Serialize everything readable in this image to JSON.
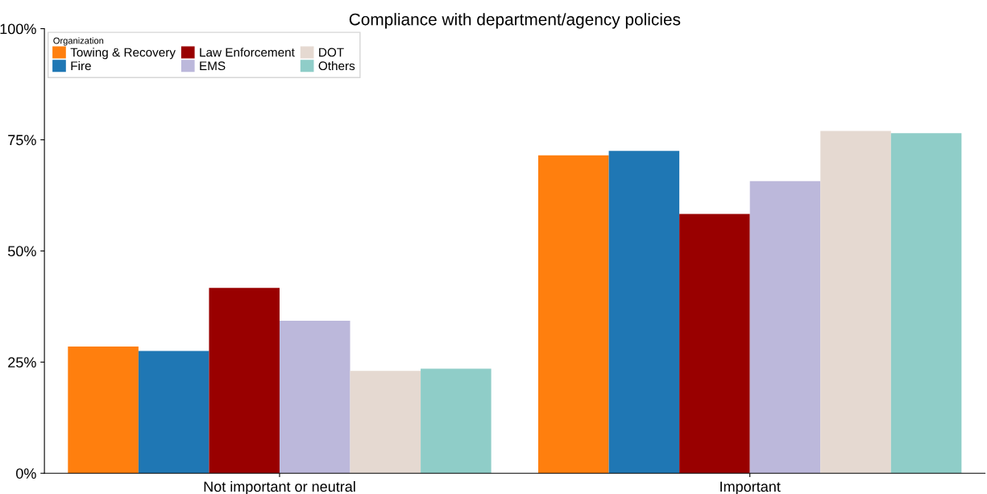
{
  "chart_data": {
    "type": "bar",
    "title": "Compliance with department/agency policies",
    "categories": [
      "Not important or neutral",
      "Important"
    ],
    "series": [
      {
        "name": "Towing & Recovery",
        "color": "#ff7f0e",
        "values": [
          28.5,
          71.5
        ]
      },
      {
        "name": "Fire",
        "color": "#1f77b4",
        "values": [
          27.5,
          72.5
        ]
      },
      {
        "name": "Law Enforcement",
        "color": "#990000",
        "values": [
          41.7,
          58.3
        ]
      },
      {
        "name": "EMS",
        "color": "#bcb8db",
        "values": [
          34.3,
          65.7
        ]
      },
      {
        "name": "DOT",
        "color": "#e5d9d1",
        "values": [
          23.0,
          77.0
        ]
      },
      {
        "name": "Others",
        "color": "#8fcdc8",
        "values": [
          23.5,
          76.5
        ]
      }
    ],
    "legend_title": "Organization",
    "legend": "top left",
    "ylim": [
      0,
      100
    ],
    "yticks": [
      {
        "value": 0,
        "label": "0%"
      },
      {
        "value": 25,
        "label": "25%"
      },
      {
        "value": 50,
        "label": "50%"
      },
      {
        "value": 75,
        "label": "75%"
      },
      {
        "value": 100,
        "label": "100%"
      }
    ],
    "grid": false
  }
}
